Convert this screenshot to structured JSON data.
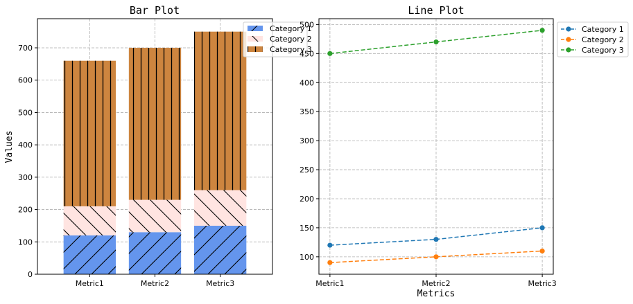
{
  "chart_data": [
    {
      "type": "bar",
      "stacked": true,
      "title": "Bar Plot",
      "xlabel": "",
      "ylabel": "Values",
      "categories": [
        "Metric1",
        "Metric2",
        "Metric3"
      ],
      "ylim": [
        0,
        790
      ],
      "yticks": [
        0,
        100,
        200,
        300,
        400,
        500,
        600,
        700
      ],
      "grid": true,
      "legend_position": "top-right",
      "series": [
        {
          "name": "Category 1",
          "values": [
            120,
            130,
            150
          ],
          "color": "#6495ED",
          "hatch": "diagonal"
        },
        {
          "name": "Category 2",
          "values": [
            90,
            100,
            110
          ],
          "color": "#FFE4E1",
          "hatch": "back-diagonal"
        },
        {
          "name": "Category 3",
          "values": [
            450,
            470,
            490
          ],
          "color": "#CD853F",
          "hatch": "vertical"
        }
      ]
    },
    {
      "type": "line",
      "title": "Line Plot",
      "xlabel": "Metrics",
      "ylabel": "",
      "categories": [
        "Metric1",
        "Metric2",
        "Metric3"
      ],
      "ylim": [
        70,
        510
      ],
      "yticks": [
        100,
        150,
        200,
        250,
        300,
        350,
        400,
        450,
        500
      ],
      "grid": true,
      "legend_position": "outside-right",
      "series": [
        {
          "name": "Category 1",
          "values": [
            120,
            130,
            150
          ],
          "color": "#1f77b4"
        },
        {
          "name": "Category 2",
          "values": [
            90,
            100,
            110
          ],
          "color": "#ff7f0e"
        },
        {
          "name": "Category 3",
          "values": [
            450,
            470,
            490
          ],
          "color": "#2ca02c"
        }
      ]
    }
  ]
}
